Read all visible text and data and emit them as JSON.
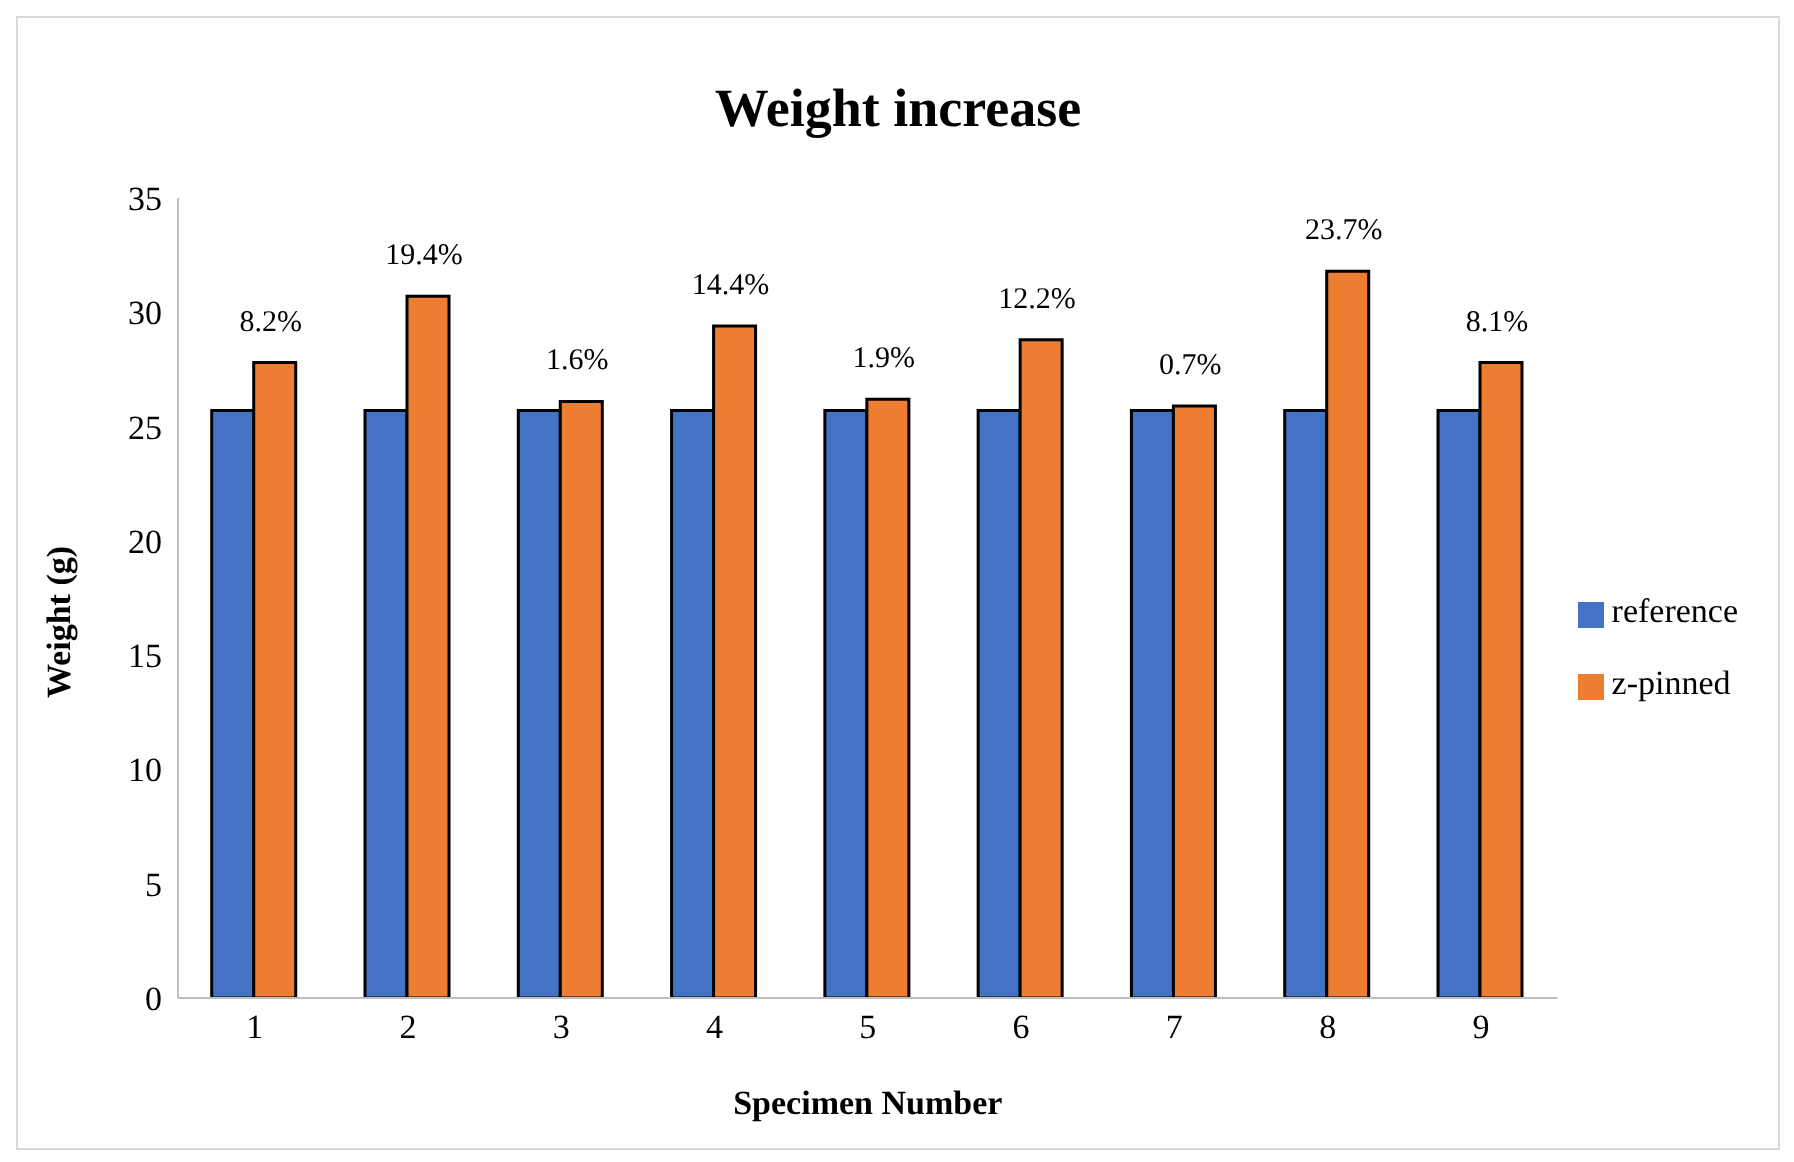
{
  "chart_data": {
    "type": "bar",
    "title": "Weight increase",
    "xlabel": "Specimen Number",
    "ylabel": "Weight (g)",
    "categories": [
      "1",
      "2",
      "3",
      "4",
      "5",
      "6",
      "7",
      "8",
      "9"
    ],
    "series": [
      {
        "name": "reference",
        "color": "#4472c4",
        "values": [
          25.7,
          25.7,
          25.7,
          25.7,
          25.7,
          25.7,
          25.7,
          25.7,
          25.7
        ]
      },
      {
        "name": "z-pinned",
        "color": "#ed7d31",
        "values": [
          27.8,
          30.7,
          26.1,
          29.4,
          26.2,
          28.8,
          25.9,
          31.8,
          27.8
        ]
      }
    ],
    "annotations": [
      {
        "text": "8.2%",
        "x": "1",
        "y": 27.8
      },
      {
        "text": "19.4%",
        "x": "2",
        "y": 30.7
      },
      {
        "text": "1.6%",
        "x": "3",
        "y": 26.1
      },
      {
        "text": "14.4%",
        "x": "4",
        "y": 29.4
      },
      {
        "text": "1.9%",
        "x": "5",
        "y": 26.2
      },
      {
        "text": "12.2%",
        "x": "6",
        "y": 28.8
      },
      {
        "text": "0.7%",
        "x": "7",
        "y": 25.9
      },
      {
        "text": "23.7%",
        "x": "8",
        "y": 31.8
      },
      {
        "text": "8.1%",
        "x": "9",
        "y": 27.8
      }
    ],
    "ylim": [
      0,
      35
    ],
    "yticks": [
      0,
      5,
      10,
      15,
      20,
      25,
      30,
      35
    ],
    "grid": false,
    "legend": "right"
  }
}
